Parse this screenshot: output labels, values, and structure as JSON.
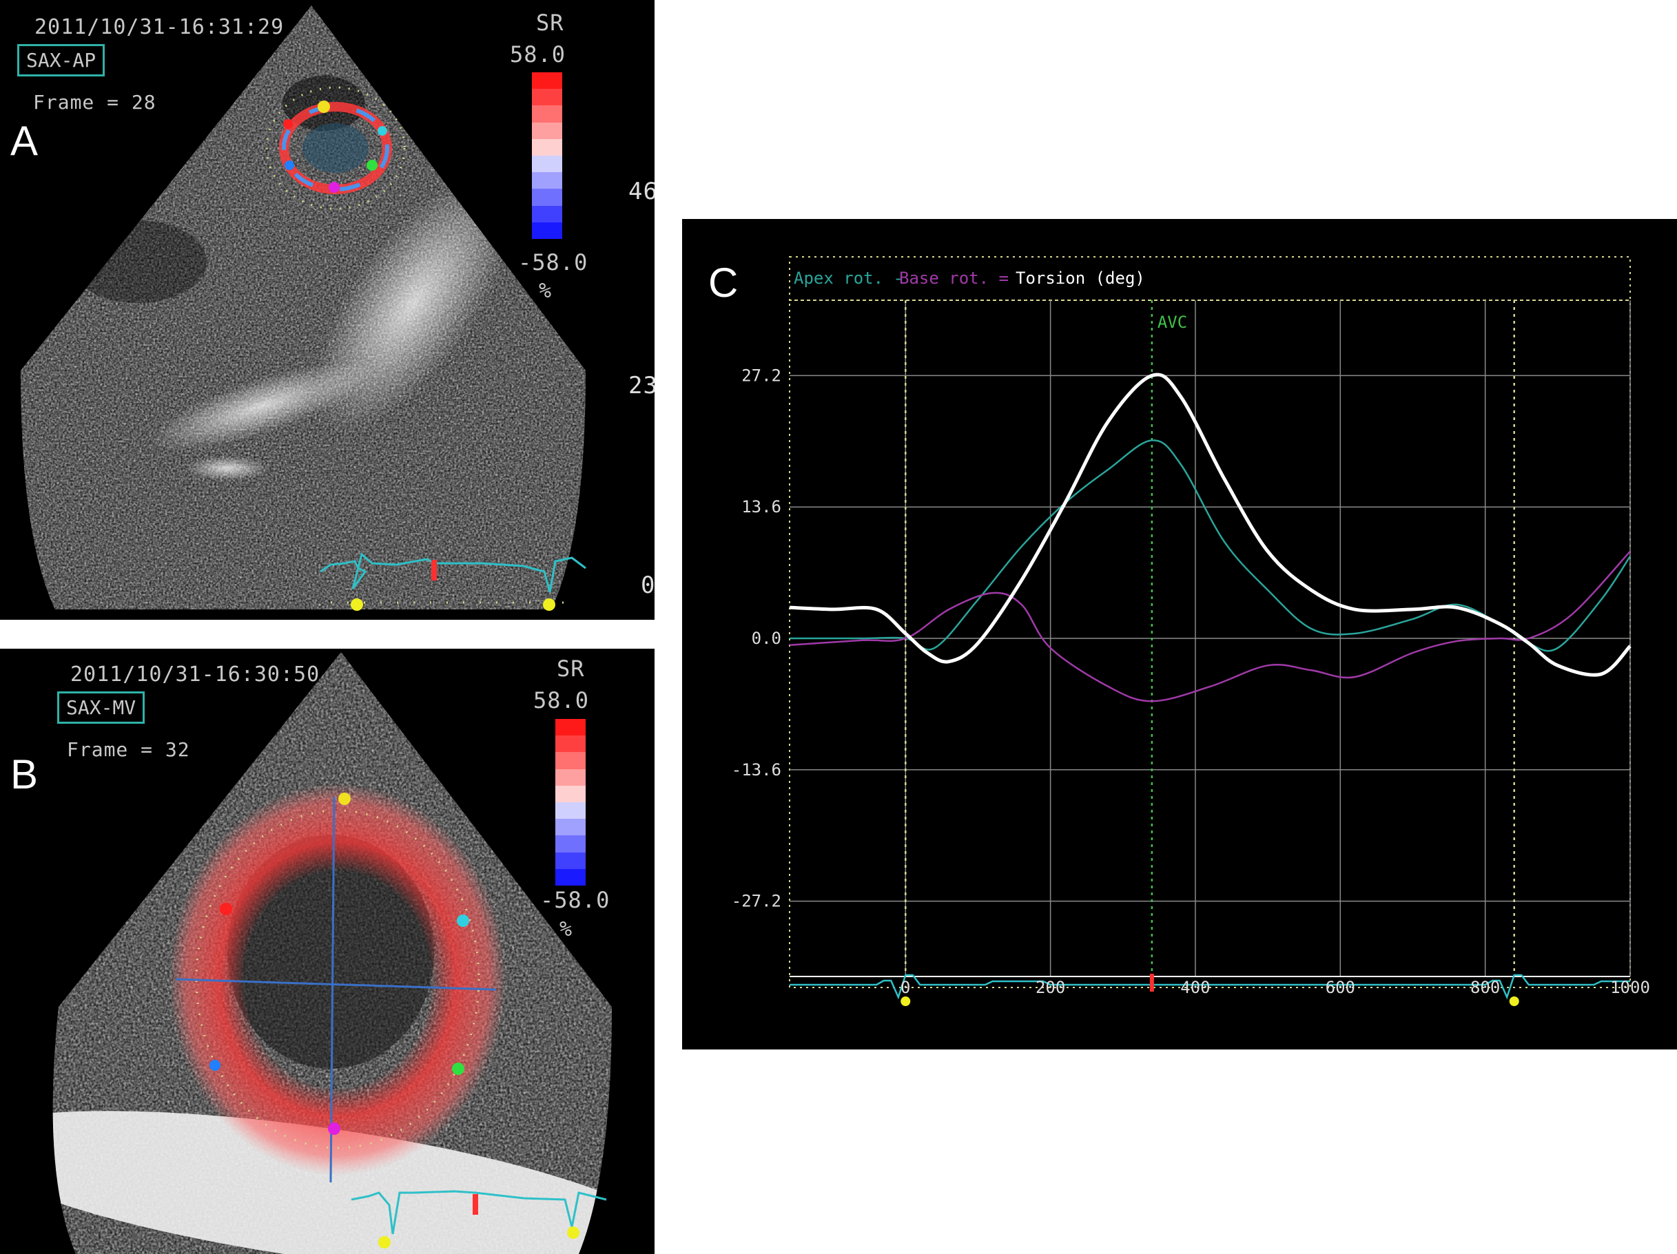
{
  "panels": {
    "a": {
      "letter": "A",
      "timestamp": "2011/10/31-16:31:29",
      "view": "SAX-AP",
      "frame": "Frame = 28",
      "scale_title": "SR",
      "scale_max": "58.0",
      "scale_min": "-58.0",
      "scale_unit": "%",
      "depth_marks": [
        "46",
        "23",
        "0"
      ]
    },
    "b": {
      "letter": "B",
      "timestamp": "2011/10/31-16:30:50",
      "view": "SAX-MV",
      "frame": "Frame = 32",
      "scale_title": "SR",
      "scale_max": "58.0",
      "scale_min": "-58.0",
      "scale_unit": "%"
    },
    "c": {
      "letter": "C"
    }
  },
  "colors": {
    "apex": "#2aa59b",
    "base": "#a03aa8",
    "torsion": "#ffffff",
    "avc": "#3fc24a",
    "grid": "#8a8a8a",
    "ecg": "#2fc0c8",
    "dotted": "#d8d890"
  },
  "chart_data": {
    "type": "line",
    "legend": {
      "apex": "Apex rot. -",
      "base": "Base rot. =",
      "torsion": "Torsion (deg)"
    },
    "annotation": "AVC",
    "annotation_x": 340,
    "markers_x": [
      0,
      840
    ],
    "xlim": [
      -160,
      1000
    ],
    "ylim": [
      -35,
      35
    ],
    "yticks": [
      27.2,
      13.6,
      0.0,
      -13.6,
      -27.2
    ],
    "ytick_labels": [
      "27.2",
      "13.6",
      "0.0",
      "-13.6",
      "-27.2"
    ],
    "xticks": [
      0,
      200,
      400,
      600,
      800,
      1000
    ],
    "xtick_labels": [
      "0",
      "200",
      "400",
      "600",
      "800",
      "1000"
    ],
    "series": [
      {
        "key": "apex",
        "x": [
          -160,
          -60,
          0,
          40,
          100,
          160,
          220,
          280,
          340,
          380,
          440,
          500,
          560,
          620,
          700,
          760,
          820,
          860,
          900,
          960,
          1000
        ],
        "y": [
          0.0,
          0.0,
          0.0,
          -1.0,
          4.0,
          9.5,
          14.0,
          17.5,
          20.5,
          18.0,
          10.0,
          5.0,
          1.0,
          0.5,
          2.0,
          3.5,
          1.5,
          -0.5,
          -1.0,
          4.0,
          8.5
        ]
      },
      {
        "key": "base",
        "x": [
          -160,
          -60,
          0,
          60,
          120,
          160,
          200,
          280,
          340,
          420,
          500,
          560,
          620,
          700,
          760,
          820,
          860,
          920,
          1000
        ],
        "y": [
          -0.7,
          -0.2,
          0.0,
          3.0,
          4.7,
          3.5,
          -1.0,
          -5.0,
          -6.5,
          -5.0,
          -2.8,
          -3.3,
          -4.0,
          -1.5,
          -0.3,
          0.0,
          0.0,
          2.5,
          9.0
        ]
      },
      {
        "key": "torsion",
        "x": [
          -160,
          -100,
          -40,
          0,
          30,
          60,
          100,
          160,
          220,
          280,
          340,
          380,
          440,
          500,
          560,
          620,
          700,
          760,
          820,
          860,
          900,
          960,
          1000
        ],
        "y": [
          3.2,
          3.0,
          3.0,
          0.5,
          -1.5,
          -2.4,
          -0.5,
          6.0,
          14.0,
          22.5,
          27.2,
          25.0,
          16.5,
          9.0,
          5.0,
          3.0,
          3.0,
          3.2,
          1.5,
          -0.5,
          -2.8,
          -3.7,
          -0.8
        ]
      }
    ]
  }
}
